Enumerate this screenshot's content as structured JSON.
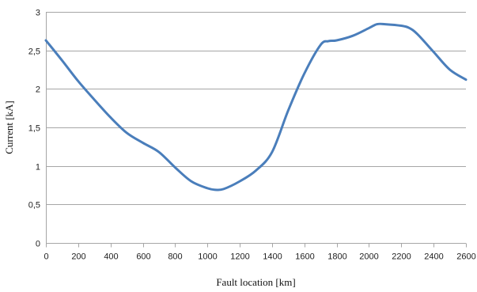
{
  "chart_data": {
    "type": "line",
    "title": "",
    "xlabel": "Fault location [km]",
    "ylabel": "Current [kA]",
    "xlim": [
      0,
      2600
    ],
    "ylim": [
      0,
      3
    ],
    "x_ticks": [
      0,
      200,
      400,
      600,
      800,
      1000,
      1200,
      1400,
      1600,
      1800,
      2000,
      2200,
      2400,
      2600
    ],
    "x_tick_labels": [
      "0",
      "200",
      "400",
      "600",
      "800",
      "1000",
      "1200",
      "1400",
      "1600",
      "1800",
      "2000",
      "2200",
      "2400",
      "2600"
    ],
    "y_ticks": [
      0,
      0.5,
      1,
      1.5,
      2,
      2.5,
      3
    ],
    "y_tick_labels": [
      "0",
      "0,5",
      "1",
      "1,5",
      "2",
      "2,5",
      "3"
    ],
    "grid": "horizontal",
    "legend": "none",
    "colors": {
      "line": "#4a7ebb",
      "grid": "#a6a6a6",
      "axis": "#a6a6a6"
    },
    "series": [
      {
        "x": [
          0,
          100,
          200,
          300,
          400,
          500,
          600,
          700,
          800,
          900,
          1000,
          1050,
          1100,
          1200,
          1300,
          1400,
          1500,
          1600,
          1700,
          1750,
          1800,
          1900,
          2000,
          2050,
          2100,
          2200,
          2250,
          2300,
          2400,
          2500,
          2600
        ],
        "values": [
          2.63,
          2.37,
          2.1,
          1.86,
          1.63,
          1.43,
          1.3,
          1.18,
          0.98,
          0.8,
          0.71,
          0.69,
          0.7,
          0.8,
          0.94,
          1.18,
          1.72,
          2.2,
          2.57,
          2.62,
          2.63,
          2.69,
          2.79,
          2.84,
          2.84,
          2.82,
          2.79,
          2.71,
          2.48,
          2.25,
          2.12
        ]
      }
    ]
  }
}
